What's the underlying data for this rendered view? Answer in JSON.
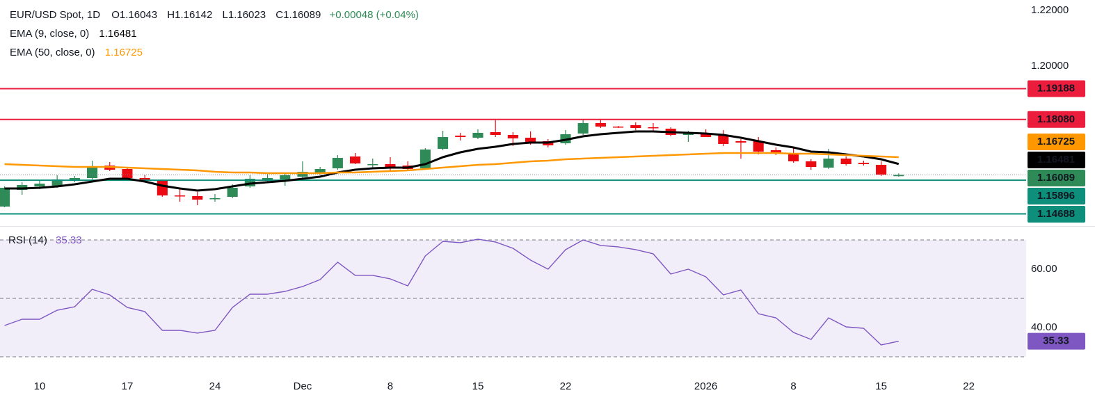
{
  "chart_data": [
    {
      "type": "candlestick",
      "title": "EUR/USD Spot, 1D",
      "header": [
        "O1.16043",
        "H1.16142",
        "L1.16023",
        "C1.16089",
        "+0.00048 (+0.04%)"
      ],
      "up_color": "#2e8b57",
      "down_color": "#ec0a12",
      "x": [
        -2,
        -1,
        0,
        1,
        2,
        3,
        4,
        5,
        6,
        7,
        8,
        9,
        10,
        11,
        12,
        13,
        14,
        15,
        16,
        17,
        18,
        19,
        20,
        21,
        22,
        23,
        24,
        25,
        26,
        27,
        28,
        29,
        30,
        31,
        32,
        33,
        34,
        35,
        36,
        37,
        38,
        39,
        40,
        41,
        42,
        43,
        44,
        45,
        46,
        47,
        48,
        49
      ],
      "open": [
        1.1495,
        1.1555,
        1.15675,
        1.15675,
        1.159,
        1.15975,
        1.16425,
        1.163,
        1.15975,
        1.15875,
        1.1535,
        1.15325,
        1.15225,
        1.153,
        1.15675,
        1.15875,
        1.15925,
        1.16025,
        1.16125,
        1.16325,
        1.1675,
        1.1645,
        1.16475,
        1.16425,
        1.16325,
        1.17025,
        1.175,
        1.17425,
        1.17625,
        1.17525,
        1.17425,
        1.173,
        1.17225,
        1.17575,
        1.1795,
        1.17825,
        1.17875,
        1.178,
        1.1775,
        1.17525,
        1.176,
        1.175,
        1.173,
        1.173,
        1.16975,
        1.16875,
        1.16575,
        1.1635,
        1.16675,
        1.16525,
        1.1645,
        1.16043
      ],
      "high": [
        1.15675,
        1.15825,
        1.15875,
        1.16075,
        1.1605,
        1.166,
        1.1655,
        1.16375,
        1.16075,
        1.15925,
        1.15575,
        1.15475,
        1.154,
        1.1575,
        1.16075,
        1.1615,
        1.16175,
        1.16575,
        1.16375,
        1.168,
        1.16875,
        1.16675,
        1.16725,
        1.16575,
        1.1705,
        1.17675,
        1.176,
        1.17725,
        1.181,
        1.17625,
        1.1765,
        1.17375,
        1.177,
        1.18075,
        1.181,
        1.1785,
        1.17975,
        1.1795,
        1.178,
        1.17675,
        1.17725,
        1.177,
        1.17375,
        1.1745,
        1.17075,
        1.17075,
        1.1665,
        1.17025,
        1.1675,
        1.166,
        1.16575,
        1.16142
      ],
      "low": [
        1.14925,
        1.15375,
        1.15575,
        1.15625,
        1.15825,
        1.15925,
        1.16225,
        1.15925,
        1.15825,
        1.153,
        1.15125,
        1.15,
        1.15125,
        1.1525,
        1.15625,
        1.15825,
        1.157,
        1.15975,
        1.161,
        1.16275,
        1.16475,
        1.16325,
        1.1625,
        1.16275,
        1.16275,
        1.16975,
        1.17325,
        1.17375,
        1.1745,
        1.17125,
        1.17175,
        1.17075,
        1.17175,
        1.17525,
        1.17775,
        1.17775,
        1.177,
        1.17675,
        1.17475,
        1.17275,
        1.1745,
        1.17125,
        1.16675,
        1.16825,
        1.168,
        1.16525,
        1.16275,
        1.163,
        1.16425,
        1.16425,
        1.1605,
        1.16023
      ],
      "close": [
        1.15625,
        1.15725,
        1.15775,
        1.15925,
        1.15975,
        1.1635,
        1.16275,
        1.15975,
        1.159,
        1.1535,
        1.15325,
        1.152,
        1.1525,
        1.15625,
        1.1595,
        1.15975,
        1.16075,
        1.162,
        1.163,
        1.167,
        1.165,
        1.16475,
        1.16325,
        1.163,
        1.17,
        1.1745,
        1.1745,
        1.176,
        1.17525,
        1.174,
        1.17225,
        1.1715,
        1.1755,
        1.1795,
        1.17825,
        1.178,
        1.17775,
        1.17775,
        1.17525,
        1.176,
        1.1745,
        1.172,
        1.1725,
        1.16925,
        1.16875,
        1.16575,
        1.16375,
        1.16675,
        1.16475,
        1.16475,
        1.161,
        1.16089
      ],
      "series": [
        {
          "name": "EMA (9, close, 0)",
          "color": "#000000",
          "legend_value": 1.16481,
          "values": [
            1.156,
            1.156,
            1.15625,
            1.15675,
            1.1575,
            1.1585,
            1.1595,
            1.1595,
            1.1585,
            1.157,
            1.156,
            1.15525,
            1.15575,
            1.15675,
            1.15775,
            1.15825,
            1.15875,
            1.1595,
            1.16025,
            1.16175,
            1.16275,
            1.16325,
            1.1635,
            1.1635,
            1.16475,
            1.16725,
            1.169,
            1.17025,
            1.171,
            1.172,
            1.1725,
            1.1725,
            1.1735,
            1.17475,
            1.1755,
            1.176,
            1.1765,
            1.1765,
            1.17625,
            1.176,
            1.17575,
            1.17525,
            1.17425,
            1.173,
            1.17175,
            1.17075,
            1.16925,
            1.169,
            1.16825,
            1.1675,
            1.1665,
            1.16481
          ]
        },
        {
          "name": "EMA (50, close, 0)",
          "color": "#ff9800",
          "legend_value": 1.16725,
          "values": [
            1.16475,
            1.1645,
            1.16425,
            1.164,
            1.16375,
            1.16375,
            1.16375,
            1.1635,
            1.16325,
            1.163,
            1.16275,
            1.1625,
            1.162,
            1.16175,
            1.16175,
            1.1615,
            1.1615,
            1.1615,
            1.1615,
            1.16175,
            1.16175,
            1.162,
            1.16225,
            1.1625,
            1.163,
            1.1635,
            1.164,
            1.1645,
            1.16475,
            1.16525,
            1.16575,
            1.166,
            1.1665,
            1.16675,
            1.167,
            1.16725,
            1.1675,
            1.16775,
            1.168,
            1.16825,
            1.1685,
            1.16875,
            1.16875,
            1.16875,
            1.16875,
            1.1685,
            1.1685,
            1.16825,
            1.168,
            1.16775,
            1.1675,
            1.16725
          ]
        }
      ],
      "hlines": [
        {
          "value": 1.19188,
          "color": "#ec1c3c"
        },
        {
          "value": {
            "value": 1.1808,
            "label": "1.18080"
          },
          "color": "#ec1c3c"
        },
        {
          "value": 1.15896,
          "color": "#0d8f7c"
        },
        {
          "value": 1.14688,
          "color": "#0d8f7c"
        }
      ],
      "ylim": [
        1.1425,
        1.22375
      ],
      "yticks": [
        {
          "value": 1.22,
          "label": "1.22000"
        },
        {
          "value": 1.2,
          "label": "1.20000"
        }
      ],
      "xlim": [
        -2.26,
        56.27
      ],
      "xticks": [
        {
          "value": 0,
          "label": "10"
        },
        {
          "value": 5,
          "label": "17"
        },
        {
          "value": 10,
          "label": "24"
        },
        {
          "value": 15,
          "label": "Dec"
        },
        {
          "value": 20,
          "label": "8"
        },
        {
          "value": 25,
          "label": "15"
        },
        {
          "value": 30,
          "label": "22"
        },
        {
          "value": 38,
          "label": "2026"
        },
        {
          "value": 43,
          "label": "8"
        },
        {
          "value": 48,
          "label": "15"
        },
        {
          "value": 53,
          "label": "22"
        }
      ]
    },
    {
      "type": "line",
      "title": "RSI (14)",
      "series": [
        {
          "name": "RSI (14)",
          "color": "#7e57c2",
          "values": [
            40.71,
            42.86,
            42.86,
            45.95,
            47.14,
            53.1,
            51.19,
            46.9,
            45.48,
            39.05,
            39.05,
            38.1,
            39.05,
            46.9,
            51.43,
            51.43,
            52.38,
            54.05,
            56.43,
            62.38,
            57.86,
            57.86,
            56.67,
            54.29,
            64.52,
            69.52,
            69.05,
            70.24,
            69.29,
            67.14,
            63.1,
            60,
            66.67,
            70,
            68.1,
            67.62,
            66.67,
            65.24,
            58.33,
            60,
            57.38,
            51.19,
            52.86,
            44.76,
            43.33,
            38.33,
            35.95,
            43.33,
            40.24,
            39.76,
            34.05,
            35.33
          ]
        }
      ],
      "levels": [
        70,
        50,
        30
      ],
      "ylim": [
        24.05,
        74.52
      ],
      "yticks": [
        {
          "value": 60,
          "label": "60.00"
        },
        {
          "value": 40,
          "label": "40.00"
        }
      ]
    }
  ]
}
